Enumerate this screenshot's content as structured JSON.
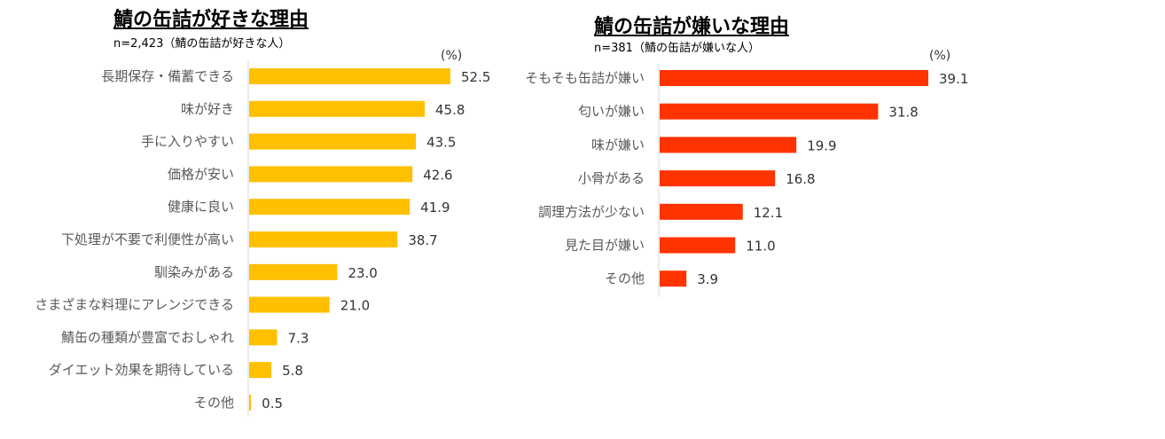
{
  "chart_data": [
    {
      "type": "bar",
      "orientation": "horizontal",
      "title": "鯖の缶詰が好きな理由",
      "subtitle": "n=2,423（鯖の缶詰が好きな人）",
      "unit": "(%)",
      "color": "#FFC000",
      "categories": [
        "長期保存・備蓄できる",
        "味が好き",
        "手に入りやすい",
        "価格が安い",
        "健康に良い",
        "下処理が不要で利便性が高い",
        "馴染みがある",
        "さまざまな料理にアレンジできる",
        "鯖缶の種類が豊富でおしゃれ",
        "ダイエット効果を期待している",
        "その他"
      ],
      "values": [
        52.5,
        45.8,
        43.5,
        42.6,
        41.9,
        38.7,
        23.0,
        21.0,
        7.3,
        5.8,
        0.5
      ],
      "labels": [
        "52.5",
        "45.8",
        "43.5",
        "42.6",
        "41.9",
        "38.7",
        "23.0",
        "21.0",
        "7.3",
        "5.8",
        "0.5"
      ]
    },
    {
      "type": "bar",
      "orientation": "horizontal",
      "title": "鯖の缶詰が嫌いな理由",
      "subtitle": "n=381（鯖の缶詰が嫌いな人）",
      "unit": "(%)",
      "color": "#FF3300",
      "categories": [
        "そもそも缶詰が嫌い",
        "匂いが嫌い",
        "味が嫌い",
        "小骨がある",
        "調理方法が少ない",
        "見た目が嫌い",
        "その他"
      ],
      "values": [
        39.1,
        31.8,
        19.9,
        16.8,
        12.1,
        11.0,
        3.9
      ],
      "labels": [
        "39.1",
        "31.8",
        "19.9",
        "16.8",
        "12.1",
        "11.0",
        "3.9"
      ]
    }
  ]
}
